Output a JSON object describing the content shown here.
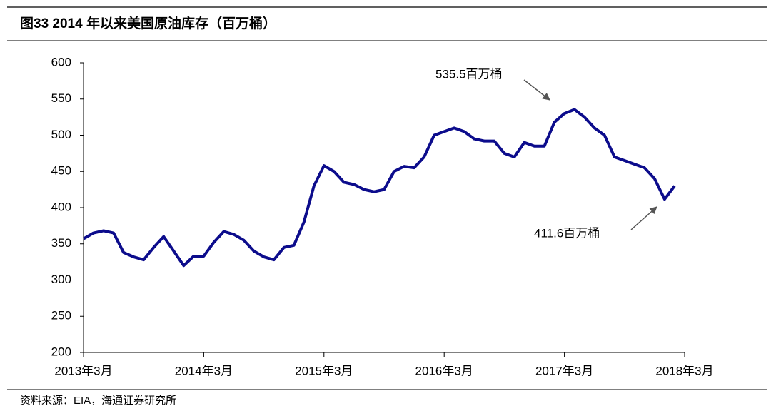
{
  "title": "图33 2014 年以来美国原油库存（百万桶）",
  "source": "资料来源：EIA，海通证券研究所",
  "chart_data": {
    "type": "line",
    "x": [
      "2013-03",
      "2013-04",
      "2013-05",
      "2013-06",
      "2013-07",
      "2013-08",
      "2013-09",
      "2013-10",
      "2013-11",
      "2013-12",
      "2014-01",
      "2014-02",
      "2014-03",
      "2014-04",
      "2014-05",
      "2014-06",
      "2014-07",
      "2014-08",
      "2014-09",
      "2014-10",
      "2014-11",
      "2014-12",
      "2015-01",
      "2015-02",
      "2015-03",
      "2015-04",
      "2015-05",
      "2015-06",
      "2015-07",
      "2015-08",
      "2015-09",
      "2015-10",
      "2015-11",
      "2015-12",
      "2016-01",
      "2016-02",
      "2016-03",
      "2016-04",
      "2016-05",
      "2016-06",
      "2016-07",
      "2016-08",
      "2016-09",
      "2016-10",
      "2016-11",
      "2016-12",
      "2017-01",
      "2017-02",
      "2017-03",
      "2017-04",
      "2017-05",
      "2017-06",
      "2017-07",
      "2017-08",
      "2017-09",
      "2017-10",
      "2017-11",
      "2017-12",
      "2018-01",
      "2018-02"
    ],
    "series": [
      {
        "color": "#0c0c8c",
        "values": [
          357,
          365,
          368,
          365,
          338,
          332,
          328,
          345,
          360,
          340,
          320,
          333,
          333,
          352,
          367,
          363,
          355,
          340,
          332,
          328,
          345,
          348,
          380,
          430,
          458,
          450,
          435,
          432,
          425,
          422,
          425,
          450,
          457,
          455,
          470,
          500,
          505,
          510,
          505,
          495,
          492,
          492,
          475,
          470,
          490,
          485,
          485,
          518,
          530,
          535.5,
          525,
          510,
          500,
          470,
          465,
          460,
          455,
          440,
          411.6,
          430
        ]
      }
    ],
    "xlim": [
      "2013-03",
      "2018-03"
    ],
    "xticks": [
      {
        "value": "2013-03",
        "label": "2013年3月"
      },
      {
        "value": "2014-03",
        "label": "2014年3月"
      },
      {
        "value": "2015-03",
        "label": "2015年3月"
      },
      {
        "value": "2016-03",
        "label": "2016年3月"
      },
      {
        "value": "2017-03",
        "label": "2017年3月"
      },
      {
        "value": "2018-03",
        "label": "2018年3月"
      }
    ],
    "ylim": [
      200,
      600
    ],
    "yticks": [
      200,
      250,
      300,
      350,
      400,
      450,
      500,
      550,
      600
    ],
    "annotations": [
      "535.5百万桶",
      "411.6百万桶"
    ]
  }
}
